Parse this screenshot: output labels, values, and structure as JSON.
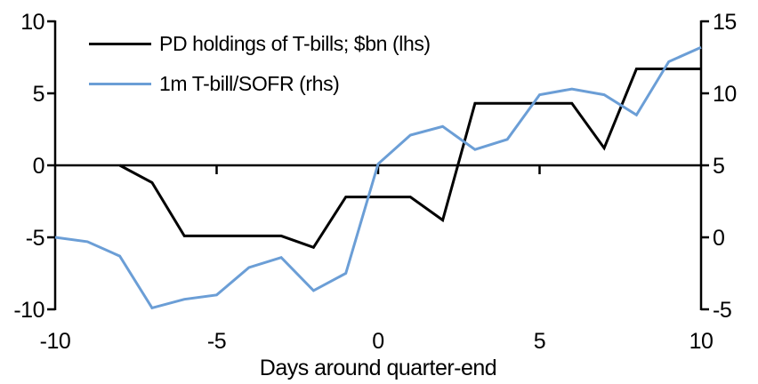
{
  "chart_data": {
    "type": "line",
    "title": "",
    "xlabel": "Days around quarter-end",
    "x": [
      -10,
      -9,
      -8,
      -7,
      -6,
      -5,
      -4,
      -3,
      -2,
      -1,
      0,
      1,
      2,
      3,
      4,
      5,
      6,
      7,
      8,
      9,
      10
    ],
    "x_axis": {
      "min": -10,
      "max": 10,
      "ticks": [
        -10,
        -5,
        0,
        5,
        10
      ]
    },
    "left_axis": {
      "min": -10,
      "max": 10,
      "ticks": [
        10,
        5,
        0,
        -5,
        -10
      ]
    },
    "right_axis": {
      "min": -5,
      "max": 15,
      "ticks": [
        15,
        10,
        5,
        0,
        -5
      ]
    },
    "grid": false,
    "legend_position": "inside-top-left",
    "series": [
      {
        "name": "PD holdings of T-bills; $bn (lhs)",
        "axis": "left",
        "color": "#000000",
        "values": [
          null,
          null,
          0.0,
          -1.2,
          -4.9,
          -4.9,
          -4.9,
          -4.9,
          -5.7,
          -2.2,
          -2.2,
          -2.2,
          -3.8,
          4.3,
          4.3,
          4.3,
          4.3,
          1.2,
          6.7,
          6.7,
          6.7
        ]
      },
      {
        "name": "1m T-bill/SOFR (rhs)",
        "axis": "right",
        "color": "#6B9ED6",
        "values": [
          0.0,
          -0.3,
          -1.3,
          -4.9,
          -4.3,
          -4.0,
          -2.1,
          -1.4,
          -3.7,
          -2.5,
          5.1,
          7.1,
          7.7,
          6.1,
          6.8,
          9.9,
          10.3,
          9.9,
          8.5,
          12.2,
          13.2
        ]
      }
    ],
    "axis_color": "#000000"
  }
}
